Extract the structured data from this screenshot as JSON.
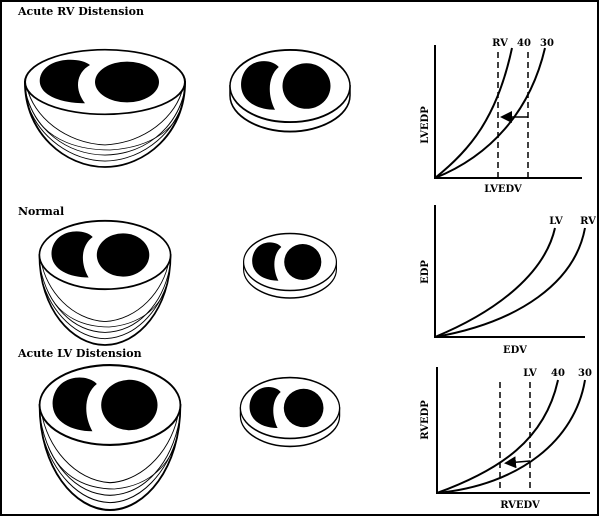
{
  "rows": [
    {
      "title": "Acute RV Distension",
      "graph": {
        "y_label": "LVEDP",
        "x_label": "LVEDV",
        "curve_labels": [
          "RV",
          "40",
          "30"
        ]
      }
    },
    {
      "title": "Normal",
      "graph": {
        "y_label": "EDP",
        "x_label": "EDV",
        "curve_labels": [
          "LV",
          "RV"
        ]
      }
    },
    {
      "title": "Acute LV Distension",
      "graph": {
        "y_label": "RVEDP",
        "x_label": "RVEDV",
        "curve_labels": [
          "LV",
          "40",
          "30"
        ]
      }
    }
  ]
}
